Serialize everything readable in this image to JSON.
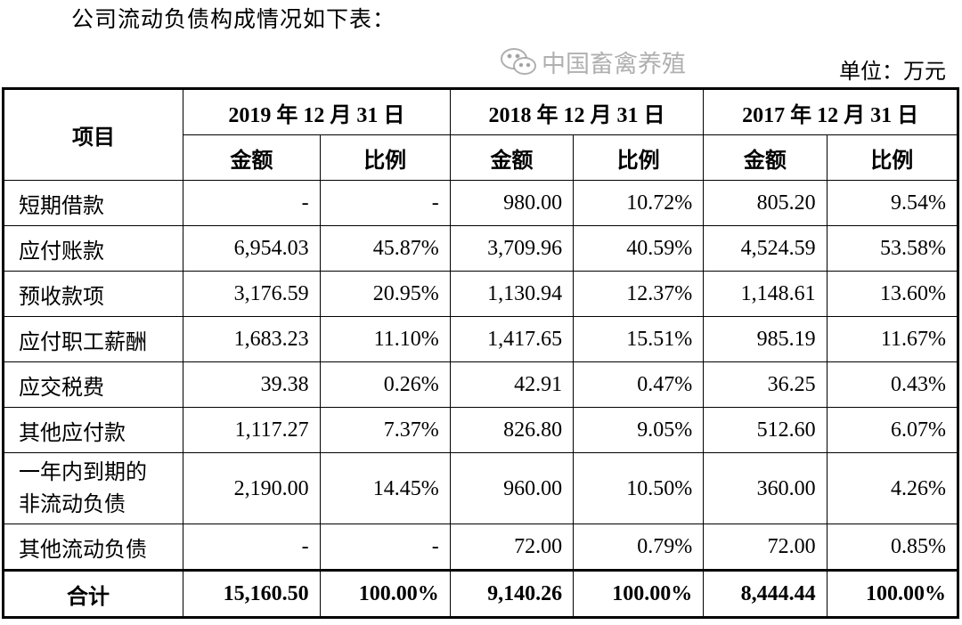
{
  "intro_text": "公司流动负债构成情况如下表：",
  "unit_label": "单位：万元",
  "table": {
    "item_header": "项目",
    "periods": [
      "2019 年 12 月 31 日",
      "2018 年 12 月 31 日",
      "2017 年 12 月 31 日"
    ],
    "sub_headers": [
      "金额",
      "比例",
      "金额",
      "比例",
      "金额",
      "比例"
    ],
    "rows": [
      {
        "item": "短期借款",
        "values": [
          "-",
          "-",
          "980.00",
          "10.72%",
          "805.20",
          "9.54%"
        ]
      },
      {
        "item": "应付账款",
        "values": [
          "6,954.03",
          "45.87%",
          "3,709.96",
          "40.59%",
          "4,524.59",
          "53.58%"
        ]
      },
      {
        "item": "预收款项",
        "values": [
          "3,176.59",
          "20.95%",
          "1,130.94",
          "12.37%",
          "1,148.61",
          "13.60%"
        ]
      },
      {
        "item": "应付职工薪酬",
        "values": [
          "1,683.23",
          "11.10%",
          "1,417.65",
          "15.51%",
          "985.19",
          "11.67%"
        ]
      },
      {
        "item": "应交税费",
        "values": [
          "39.38",
          "0.26%",
          "42.91",
          "0.47%",
          "36.25",
          "0.43%"
        ]
      },
      {
        "item": "其他应付款",
        "values": [
          "1,117.27",
          "7.37%",
          "826.80",
          "9.05%",
          "512.60",
          "6.07%"
        ]
      },
      {
        "item_lines": [
          "一年内到期的",
          "非流动负债"
        ],
        "values": [
          "2,190.00",
          "14.45%",
          "960.00",
          "10.50%",
          "360.00",
          "4.26%"
        ]
      },
      {
        "item": "其他流动负债",
        "values": [
          "-",
          "-",
          "72.00",
          "0.79%",
          "72.00",
          "0.85%"
        ]
      }
    ],
    "total": {
      "item": "合计",
      "values": [
        "15,160.50",
        "100.00%",
        "9,140.26",
        "100.00%",
        "8,444.44",
        "100.00%"
      ]
    }
  },
  "watermark": {
    "icon": "wechat-icon",
    "text": "中国畜禽养殖"
  }
}
